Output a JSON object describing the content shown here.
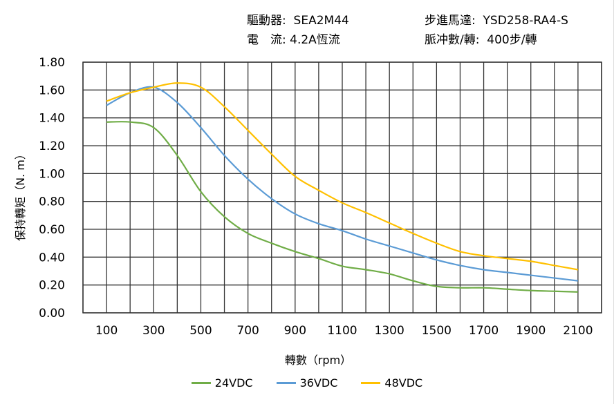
{
  "header": {
    "driver_label": "驅動器:",
    "driver_value": "SEA2M44",
    "motor_label": "步進馬達:",
    "motor_value": "YSD258-RA4-S",
    "current_label": "電　流:",
    "current_value": "4.2A恆流",
    "pulse_label": "脈冲數/轉:",
    "pulse_value": "400步/轉"
  },
  "chart_data": {
    "type": "line",
    "xlabel": "轉數（rpm）",
    "ylabel": "保持轉矩（N. m）",
    "ylim": [
      0,
      1.8
    ],
    "xlim": [
      0,
      2200
    ],
    "grid": true,
    "legend": "bottom",
    "y_ticks": [
      "0.00",
      "0.20",
      "0.40",
      "0.60",
      "0.80",
      "1.00",
      "1.20",
      "1.40",
      "1.60",
      "1.80"
    ],
    "x_ticks": [
      "100",
      "300",
      "500",
      "700",
      "900",
      "1100",
      "1300",
      "1500",
      "1700",
      "1900",
      "2100"
    ],
    "x": [
      100,
      200,
      300,
      400,
      500,
      600,
      700,
      800,
      900,
      1000,
      1100,
      1200,
      1300,
      1400,
      1500,
      1600,
      1700,
      1800,
      1900,
      2000,
      2100
    ],
    "series": [
      {
        "name": "24VDC",
        "color": "#70AD47",
        "values": [
          1.37,
          1.37,
          1.33,
          1.13,
          0.87,
          0.69,
          0.57,
          0.5,
          0.44,
          0.39,
          0.335,
          0.31,
          0.28,
          0.23,
          0.19,
          0.18,
          0.18,
          0.17,
          0.16,
          0.155,
          0.15
        ]
      },
      {
        "name": "36VDC",
        "color": "#5B9BD5",
        "values": [
          1.49,
          1.58,
          1.62,
          1.51,
          1.33,
          1.13,
          0.96,
          0.82,
          0.71,
          0.64,
          0.59,
          0.53,
          0.48,
          0.43,
          0.38,
          0.34,
          0.31,
          0.29,
          0.27,
          0.25,
          0.23
        ]
      },
      {
        "name": "48VDC",
        "color": "#FFC000",
        "values": [
          1.52,
          1.58,
          1.62,
          1.65,
          1.62,
          1.48,
          1.31,
          1.14,
          0.98,
          0.88,
          0.79,
          0.72,
          0.645,
          0.57,
          0.5,
          0.44,
          0.41,
          0.39,
          0.37,
          0.34,
          0.31
        ]
      }
    ]
  }
}
